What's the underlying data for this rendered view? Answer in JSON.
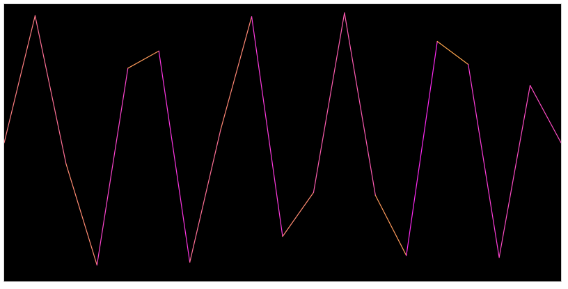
{
  "chart_data": {
    "type": "line",
    "title": "",
    "xlabel": "",
    "ylabel": "",
    "grid": false,
    "legend": "none",
    "background_color": "#000000",
    "colormap": {
      "low_value_color": "#ff22ff",
      "mid_value_color": "#ff8a73",
      "high_value_color": "#ffe000"
    },
    "xlim": [
      0,
      6.3
    ],
    "ylim": [
      -1.45,
      1.45
    ],
    "series": [
      {
        "color_mode": "by |y|",
        "x": [
          0.0,
          0.35,
          0.7,
          1.05,
          1.4,
          1.75,
          2.1,
          2.45,
          2.8,
          3.15,
          3.5,
          3.85,
          4.2,
          4.55,
          4.9,
          5.25,
          5.6,
          5.95,
          6.3
        ],
        "y": [
          0.0,
          1.33,
          -0.22,
          -1.28,
          0.78,
          0.96,
          -1.25,
          0.14,
          1.32,
          -0.98,
          -0.52,
          1.36,
          -0.55,
          -1.18,
          1.06,
          0.82,
          -1.2,
          0.6,
          0.0
        ]
      }
    ]
  }
}
